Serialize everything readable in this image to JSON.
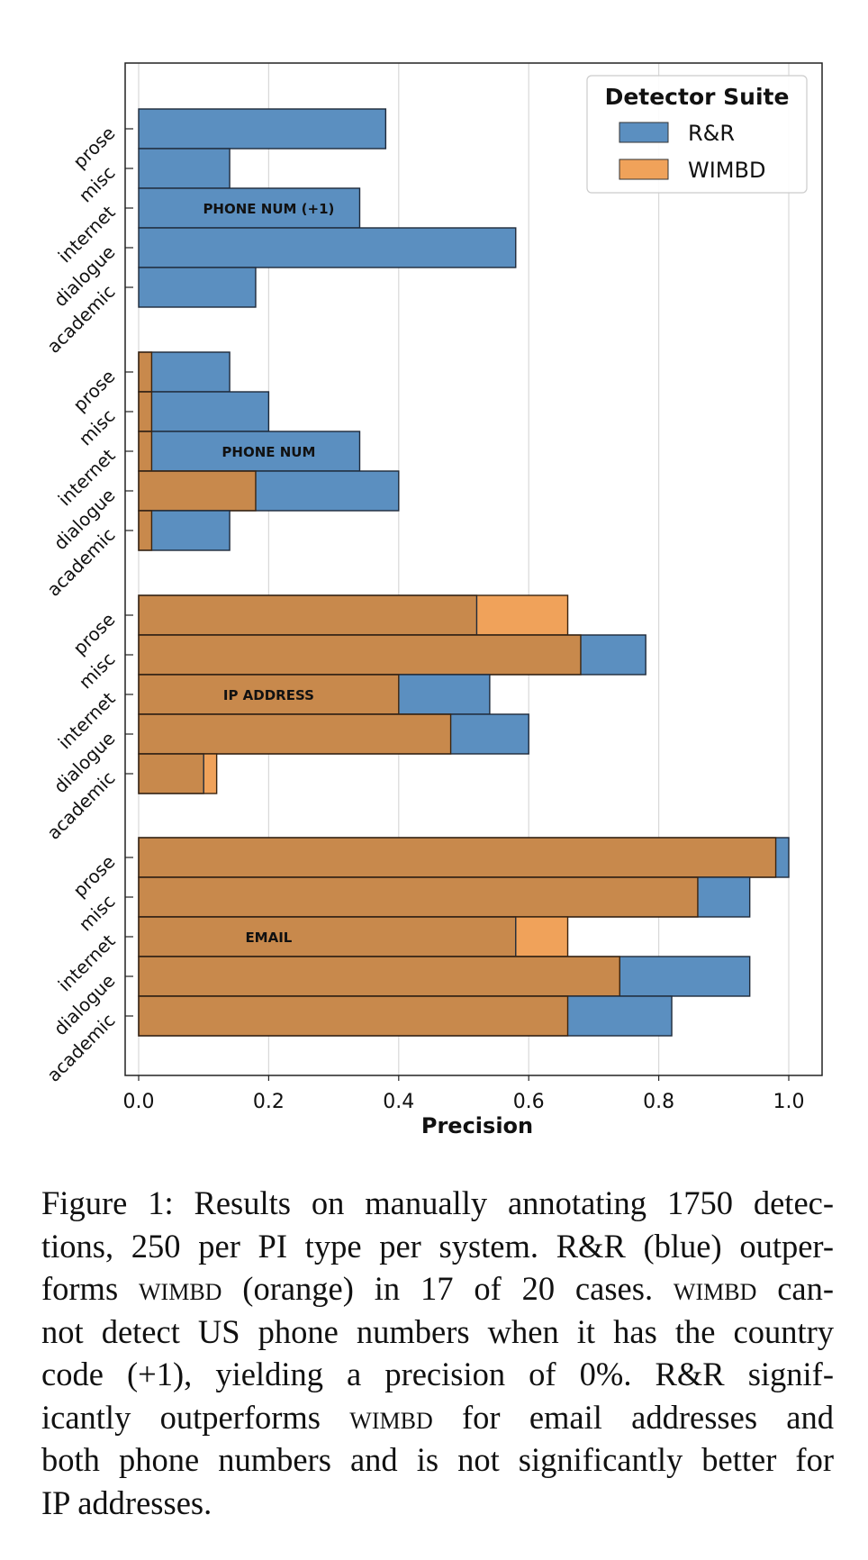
{
  "chart_data": {
    "type": "bar",
    "orientation": "horizontal",
    "title": "",
    "xlabel": "Precision",
    "ylabel": "",
    "xlim": [
      0.0,
      1.05
    ],
    "xticks": [
      "0.0",
      "0.2",
      "0.4",
      "0.6",
      "0.8",
      "1.0"
    ],
    "grid": "vertical",
    "legend": {
      "title": "Detector Suite",
      "placement": "top-right",
      "entries": [
        "R&R",
        "WIMBD"
      ]
    },
    "colors": {
      "R&R": "#5b8fc0",
      "WIMBD": "#f0a25a",
      "overlap": "#c8894c"
    },
    "categories": [
      "prose",
      "misc",
      "internet",
      "dialogue",
      "academic"
    ],
    "groups": [
      {
        "name": "PHONE NUM (+1)",
        "series": [
          {
            "name": "R&R",
            "values": [
              0.38,
              0.14,
              0.34,
              0.58,
              0.18
            ]
          },
          {
            "name": "WIMBD",
            "values": [
              0.0,
              0.0,
              0.0,
              0.0,
              0.0
            ]
          }
        ]
      },
      {
        "name": "PHONE NUM",
        "series": [
          {
            "name": "R&R",
            "values": [
              0.14,
              0.2,
              0.34,
              0.4,
              0.14
            ]
          },
          {
            "name": "WIMBD",
            "values": [
              0.02,
              0.02,
              0.02,
              0.18,
              0.02
            ]
          }
        ]
      },
      {
        "name": "IP ADDRESS",
        "series": [
          {
            "name": "R&R",
            "values": [
              0.52,
              0.78,
              0.54,
              0.6,
              0.1
            ]
          },
          {
            "name": "WIMBD",
            "values": [
              0.66,
              0.68,
              0.4,
              0.48,
              0.12
            ]
          }
        ]
      },
      {
        "name": "EMAIL",
        "series": [
          {
            "name": "R&R",
            "values": [
              1.0,
              0.94,
              0.58,
              0.94,
              0.82
            ]
          },
          {
            "name": "WIMBD",
            "values": [
              0.98,
              0.86,
              0.66,
              0.74,
              0.66
            ]
          }
        ]
      }
    ]
  },
  "caption": {
    "lines": [
      [
        {
          "t": "Figure 1: Results on manually annotating 1750 detec-"
        }
      ],
      [
        {
          "t": "tions, 250 per PI type per system. R&R (blue) outper-"
        }
      ],
      [
        {
          "t": "forms "
        },
        {
          "t": "WIMBD",
          "sc": true
        },
        {
          "t": " (orange) in 17 of 20 cases. "
        },
        {
          "t": "WIMBD",
          "sc": true
        },
        {
          "t": " can-"
        }
      ],
      [
        {
          "t": "not detect US phone numbers when it has the country"
        }
      ],
      [
        {
          "t": "code (+1), yielding a precision of 0%.  R&R signif-"
        }
      ],
      [
        {
          "t": "icantly outperforms "
        },
        {
          "t": "WIMBD",
          "sc": true
        },
        {
          "t": " for email addresses and"
        }
      ],
      [
        {
          "t": "both phone numbers and is not significantly better for"
        }
      ],
      [
        {
          "t": "IP addresses."
        }
      ]
    ]
  }
}
